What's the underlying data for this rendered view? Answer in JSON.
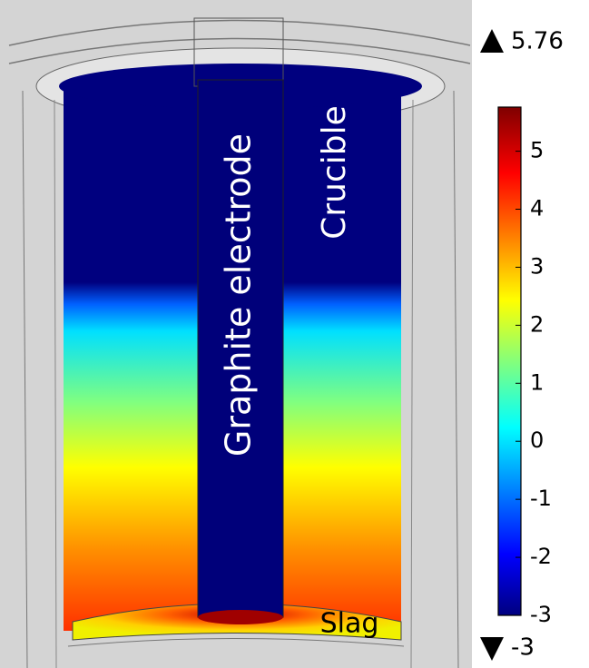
{
  "scene": {
    "labels": {
      "electrode": "Graphite electrode",
      "crucible": "Crucible",
      "slag": "Slag"
    }
  },
  "colorbar": {
    "max": 5.76,
    "min": -3,
    "ticks": [
      5,
      4,
      3,
      2,
      1,
      0,
      -1,
      -2,
      -3
    ]
  }
}
